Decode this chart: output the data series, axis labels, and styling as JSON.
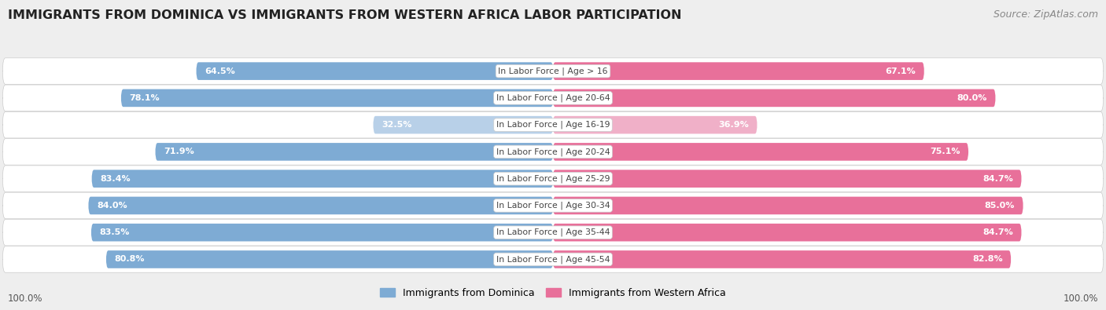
{
  "title": "IMMIGRANTS FROM DOMINICA VS IMMIGRANTS FROM WESTERN AFRICA LABOR PARTICIPATION",
  "source": "Source: ZipAtlas.com",
  "categories": [
    "In Labor Force | Age > 16",
    "In Labor Force | Age 20-64",
    "In Labor Force | Age 16-19",
    "In Labor Force | Age 20-24",
    "In Labor Force | Age 25-29",
    "In Labor Force | Age 30-34",
    "In Labor Force | Age 35-44",
    "In Labor Force | Age 45-54"
  ],
  "dominica_values": [
    64.5,
    78.1,
    32.5,
    71.9,
    83.4,
    84.0,
    83.5,
    80.8
  ],
  "western_africa_values": [
    67.1,
    80.0,
    36.9,
    75.1,
    84.7,
    85.0,
    84.7,
    82.8
  ],
  "dominica_color": "#7eabd4",
  "dominica_color_light": "#b8d0e8",
  "western_africa_color": "#e8709a",
  "western_africa_color_light": "#f0b0c8",
  "background_color": "#eeeeee",
  "legend_dominica": "Immigrants from Dominica",
  "legend_western_africa": "Immigrants from Western Africa",
  "title_fontsize": 11.5,
  "source_fontsize": 9,
  "value_fontsize": 8,
  "cat_fontsize": 7.8,
  "footer_fontsize": 8.5,
  "legend_fontsize": 9
}
